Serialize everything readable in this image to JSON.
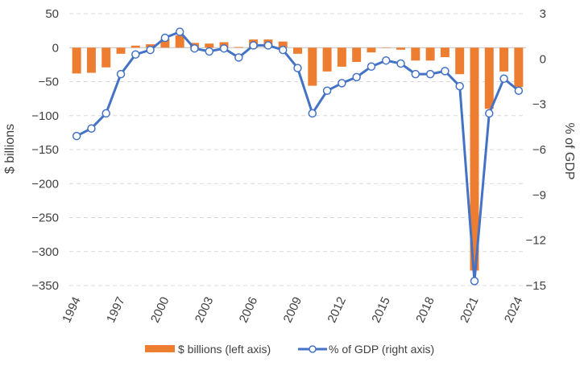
{
  "chart_data": {
    "type": "bar+line",
    "title": "",
    "x": [
      1994,
      1995,
      1996,
      1997,
      1998,
      1999,
      2000,
      2001,
      2002,
      2003,
      2004,
      2005,
      2006,
      2007,
      2008,
      2009,
      2010,
      2011,
      2012,
      2013,
      2014,
      2015,
      2016,
      2017,
      2018,
      2019,
      2020,
      2021,
      2022,
      2023,
      2024
    ],
    "x_tick_labels": [
      "1994",
      "1997",
      "2000",
      "2003",
      "2006",
      "2009",
      "2012",
      "2015",
      "2018",
      "2021",
      "2024"
    ],
    "series": [
      {
        "name": "$ billions (left axis)",
        "type": "bar",
        "axis": "left",
        "color": "#ED7D31",
        "values": [
          -38,
          -37,
          -29,
          -9,
          3,
          5,
          13,
          18,
          7,
          6,
          8,
          1,
          12,
          12,
          9,
          -9,
          -56,
          -35,
          -28,
          -21,
          -7,
          0,
          -3,
          -19,
          -19,
          -14,
          -39,
          -328,
          -90,
          -35,
          -58
        ]
      },
      {
        "name": "% of GDP (right axis)",
        "type": "line",
        "axis": "right",
        "color": "#4472C4",
        "values": [
          -5.1,
          -4.6,
          -3.6,
          -1.0,
          0.3,
          0.6,
          1.4,
          1.8,
          0.7,
          0.5,
          0.7,
          0.1,
          0.9,
          0.9,
          0.6,
          -0.6,
          -3.6,
          -2.1,
          -1.6,
          -1.2,
          -0.5,
          -0.1,
          -0.3,
          -1.0,
          -1.0,
          -0.8,
          -1.8,
          -14.7,
          -3.6,
          -1.3,
          -2.1
        ]
      }
    ],
    "ylabel_left": "$ billions",
    "ylabel_right": "% of GDP",
    "ylim_left": [
      -350,
      50
    ],
    "ylim_right": [
      -15,
      3
    ],
    "yticks_left": [
      "50",
      "0",
      "-50",
      "-100",
      "-150",
      "-200",
      "-250",
      "-300",
      "-350"
    ],
    "yticks_right": [
      "3",
      "0",
      "-3",
      "-6",
      "-9",
      "-12",
      "-15"
    ],
    "grid": "horizontal dashed",
    "legend_position": "bottom"
  }
}
